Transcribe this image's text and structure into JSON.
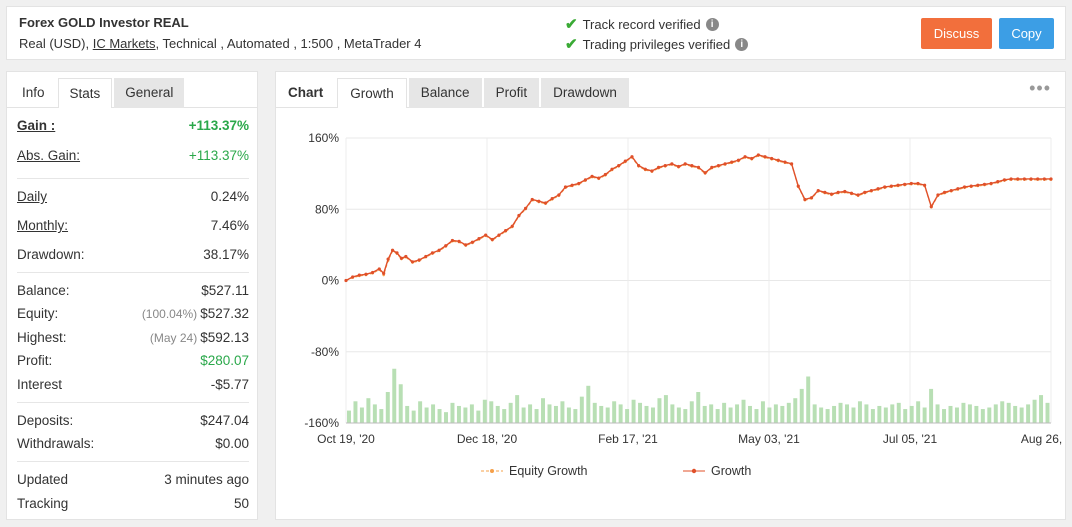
{
  "header": {
    "title": "Forex GOLD Investor REAL",
    "sub_prefix": "Real (USD),",
    "broker": "IC Markets",
    "sub_suffix": ", Technical , Automated , 1:500 , MetaTrader 4",
    "verified_1": "Track record verified",
    "verified_2": "Trading privileges verified",
    "discuss_label": "Discuss",
    "copy_label": "Copy",
    "colors": {
      "discuss": "#f26f3c",
      "copy": "#3c9ee5",
      "check": "#3aaa35"
    }
  },
  "left_tabs": [
    "Info",
    "Stats",
    "General"
  ],
  "stats": {
    "gain": {
      "label": "Gain :",
      "value": "+113.37%"
    },
    "abs_gain": {
      "label": "Abs. Gain:",
      "value": "+113.37%"
    },
    "daily": {
      "label": "Daily",
      "value": "0.24%"
    },
    "monthly": {
      "label": "Monthly:",
      "value": "7.46%"
    },
    "drawdown": {
      "label": "Drawdown:",
      "value": "38.17%"
    },
    "balance": {
      "label": "Balance:",
      "value": "$527.11"
    },
    "equity": {
      "label": "Equity:",
      "note": "(100.04%)",
      "value": "$527.32"
    },
    "highest": {
      "label": "Highest:",
      "note": "(May 24)",
      "value": "$592.13"
    },
    "profit": {
      "label": "Profit:",
      "value": "$280.07"
    },
    "interest": {
      "label": "Interest",
      "value": "-$5.77"
    },
    "deposits": {
      "label": "Deposits:",
      "value": "$247.04"
    },
    "withdrawals": {
      "label": "Withdrawals:",
      "value": "$0.00"
    },
    "updated": {
      "label": "Updated",
      "value": "3 minutes ago"
    },
    "tracking": {
      "label": "Tracking",
      "value": "50"
    }
  },
  "chart_tabs": {
    "label": "Chart",
    "items": [
      "Growth",
      "Balance",
      "Profit",
      "Drawdown"
    ]
  },
  "chart_data": {
    "type": "line",
    "ylim": [
      -160,
      160
    ],
    "y_ticks": [
      "160%",
      "80%",
      "0%",
      "-80%",
      "-160%"
    ],
    "x_ticks": [
      "Oct 19, '20",
      "Dec 18, '20",
      "Feb 17, '21",
      "May 03, '21",
      "Jul 05, '21",
      "Aug 26, '21"
    ],
    "x": [
      0,
      3,
      6,
      9,
      12,
      15,
      17,
      19,
      21,
      23,
      25,
      27,
      30,
      33,
      36,
      39,
      42,
      45,
      48,
      51,
      54,
      57,
      60,
      63,
      66,
      69,
      72,
      75,
      78,
      81,
      84,
      87,
      90,
      93,
      96,
      99,
      102,
      105,
      108,
      111,
      114,
      117,
      120,
      123,
      126,
      129,
      132,
      135,
      138,
      141,
      144,
      147,
      150,
      153,
      156,
      159,
      162,
      165,
      168,
      171,
      174,
      177,
      180,
      183,
      186,
      189,
      192,
      195,
      198,
      201,
      204,
      207,
      210,
      213,
      216,
      219,
      222,
      225,
      228,
      231,
      234,
      237,
      240,
      243,
      246,
      249,
      252,
      255,
      258,
      261,
      264,
      267,
      270,
      273,
      276,
      279,
      282,
      285,
      288,
      291,
      294,
      297,
      300,
      303,
      306,
      309,
      312,
      315,
      318
    ],
    "series": [
      {
        "name": "Equity Growth",
        "color": "#f5a04a",
        "values": [
          0,
          3,
          5,
          6,
          8,
          12,
          6,
          22,
          33,
          30,
          24,
          26,
          20,
          22,
          26,
          30,
          33,
          38,
          44,
          43,
          39,
          42,
          46,
          50,
          45,
          50,
          55,
          60,
          72,
          80,
          90,
          88,
          86,
          91,
          95,
          104,
          106,
          108,
          112,
          116,
          114,
          118,
          124,
          128,
          133,
          138,
          128,
          124,
          122,
          126,
          128,
          130,
          127,
          130,
          128,
          126,
          120,
          126,
          128,
          130,
          132,
          134,
          138,
          136,
          140,
          138,
          136,
          134,
          132,
          130,
          105,
          90,
          92,
          100,
          98,
          96,
          98,
          99,
          97,
          95,
          98,
          100,
          102,
          104,
          105,
          106,
          107,
          108,
          108,
          106,
          82,
          95,
          98,
          100,
          102,
          104,
          105,
          106,
          107,
          108,
          110,
          112,
          113,
          113,
          113,
          113,
          113,
          113,
          113
        ]
      },
      {
        "name": "Growth",
        "color": "#e0502a",
        "values": [
          0,
          4,
          6,
          7,
          9,
          13,
          8,
          24,
          34,
          31,
          25,
          27,
          21,
          23,
          27,
          31,
          34,
          39,
          45,
          44,
          40,
          43,
          47,
          51,
          46,
          51,
          56,
          61,
          73,
          81,
          91,
          89,
          87,
          92,
          96,
          105,
          107,
          109,
          113,
          117,
          115,
          119,
          125,
          129,
          134,
          139,
          129,
          125,
          123,
          127,
          129,
          131,
          128,
          131,
          129,
          127,
          121,
          127,
          129,
          131,
          133,
          135,
          139,
          137,
          141,
          139,
          137,
          135,
          133,
          131,
          106,
          91,
          93,
          101,
          99,
          97,
          99,
          100,
          98,
          96,
          99,
          101,
          103,
          105,
          106,
          107,
          108,
          109,
          109,
          107,
          83,
          96,
          99,
          101,
          103,
          105,
          106,
          107,
          108,
          109,
          111,
          113,
          114,
          114,
          114,
          114,
          114,
          114,
          114
        ]
      }
    ],
    "volume_bars": [
      8,
      14,
      10,
      16,
      12,
      9,
      20,
      35,
      25,
      11,
      8,
      14,
      10,
      12,
      9,
      7,
      13,
      11,
      10,
      12,
      8,
      15,
      14,
      11,
      9,
      13,
      18,
      10,
      12,
      9,
      16,
      12,
      11,
      14,
      10,
      9,
      17,
      24,
      13,
      11,
      10,
      14,
      12,
      9,
      15,
      13,
      11,
      10,
      16,
      18,
      12,
      10,
      9,
      14,
      20,
      11,
      12,
      9,
      13,
      10,
      12,
      15,
      11,
      9,
      14,
      10,
      12,
      11,
      13,
      16,
      22,
      30,
      12,
      10,
      9,
      11,
      13,
      12,
      10,
      14,
      12,
      9,
      11,
      10,
      12,
      13,
      9,
      11,
      14,
      10,
      22,
      12,
      9,
      11,
      10,
      13,
      12,
      11,
      9,
      10,
      12,
      14,
      13,
      11,
      10,
      12,
      15,
      18,
      13
    ],
    "legend": [
      "Equity Growth",
      "Growth"
    ]
  }
}
